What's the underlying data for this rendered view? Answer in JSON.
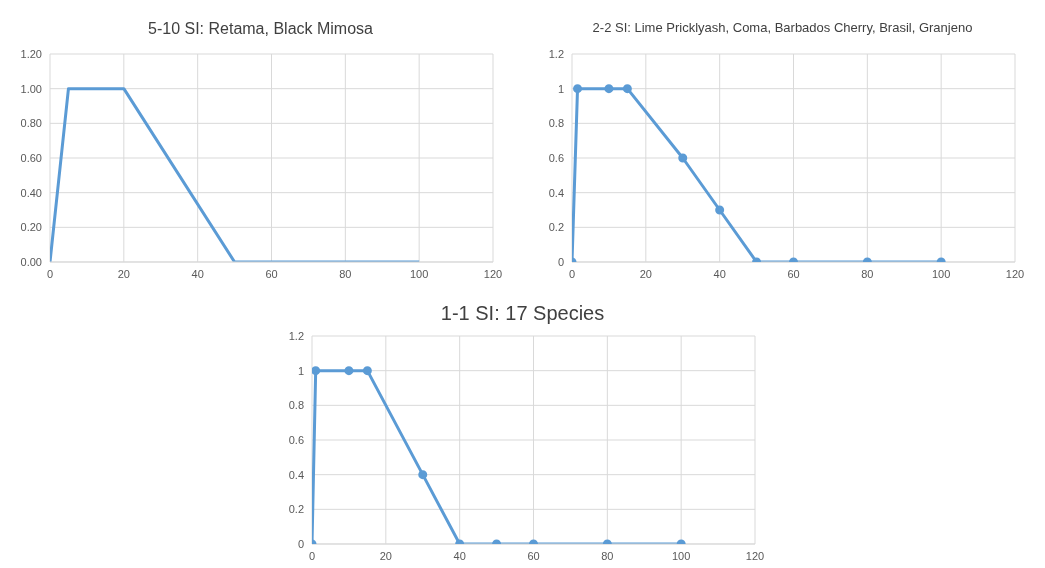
{
  "chart_data": [
    {
      "type": "line",
      "title": "5-10 SI: Retama, Black Mimosa",
      "x": [
        0,
        5,
        20,
        50,
        100
      ],
      "values": [
        0,
        1,
        1,
        0,
        0
      ],
      "color": "#5b9bd5",
      "marker": "none",
      "xlim": [
        0,
        120
      ],
      "xticks": [
        0,
        20,
        40,
        60,
        80,
        100,
        120
      ],
      "ylim": [
        0,
        1.2
      ],
      "yticks": [
        {
          "value": 0,
          "label": "0.00"
        },
        {
          "value": 0.2,
          "label": "0.20"
        },
        {
          "value": 0.4,
          "label": "0.40"
        },
        {
          "value": 0.6,
          "label": "0.60"
        },
        {
          "value": 0.8,
          "label": "0.80"
        },
        {
          "value": 1,
          "label": "1.00"
        },
        {
          "value": 1.2,
          "label": "1.20"
        }
      ],
      "grid": true,
      "legend": false
    },
    {
      "type": "line",
      "title": "2-2 SI: Lime Pricklyash, Coma, Barbados Cherry, Brasil, Granjeno",
      "x": [
        0,
        1.5,
        10,
        15,
        30,
        40,
        50,
        60,
        80,
        100
      ],
      "values": [
        0,
        1,
        1,
        1,
        0.6,
        0.3,
        0,
        0,
        0,
        0
      ],
      "color": "#5b9bd5",
      "marker": "circle",
      "xlim": [
        0,
        120
      ],
      "xticks": [
        0,
        20,
        40,
        60,
        80,
        100,
        120
      ],
      "ylim": [
        0,
        1.2
      ],
      "yticks": [
        0,
        0.2,
        0.4,
        0.6,
        0.8,
        1,
        1.2
      ],
      "grid": true,
      "legend": false
    },
    {
      "type": "line",
      "title": "1-1 SI: 17 Species",
      "x": [
        0,
        1,
        10,
        15,
        30,
        40,
        50,
        60,
        80,
        100
      ],
      "values": [
        0,
        1,
        1,
        1,
        0.4,
        0,
        0,
        0,
        0,
        0
      ],
      "color": "#5b9bd5",
      "marker": "circle",
      "xlim": [
        0,
        120
      ],
      "xticks": [
        0,
        20,
        40,
        60,
        80,
        100,
        120
      ],
      "ylim": [
        0,
        1.2
      ],
      "yticks": [
        0,
        0.2,
        0.4,
        0.6,
        0.8,
        1,
        1.2
      ],
      "grid": true,
      "legend": false
    }
  ]
}
